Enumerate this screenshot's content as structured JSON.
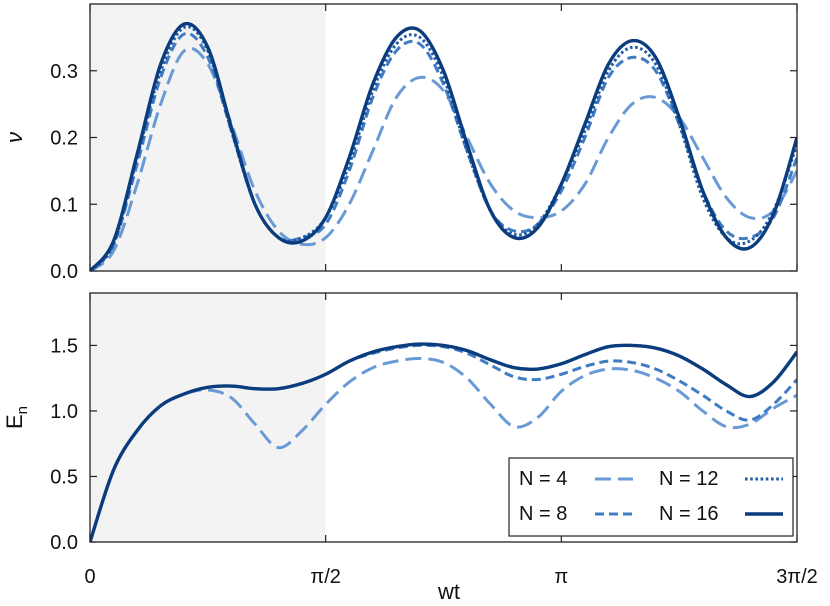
{
  "chart_data": [
    {
      "type": "line",
      "panel": "top",
      "ylabel": "ν",
      "xlim_in_pi_units": [
        0,
        1.5
      ],
      "ylim": [
        0,
        0.4
      ],
      "y_ticks": [
        "0.0",
        "0.1",
        "0.2",
        "0.3"
      ],
      "y_tick_values": [
        0,
        0.1,
        0.2,
        0.3
      ],
      "shaded_x_range_in_pi_units": [
        0,
        0.5
      ],
      "grid": false,
      "series": [
        {
          "name": "N = 4",
          "style": "long-dash",
          "color": "#6a9ad6",
          "x": [
            0,
            0.05,
            0.1,
            0.15,
            0.2,
            0.25,
            0.3,
            0.35,
            0.4,
            0.45,
            0.5,
            0.55,
            0.6,
            0.65,
            0.7,
            0.75,
            0.8,
            0.85,
            0.9,
            0.95,
            1.0,
            1.05,
            1.1,
            1.15,
            1.2,
            1.25,
            1.3,
            1.35,
            1.4,
            1.45,
            1.5
          ],
          "y": [
            0,
            0.03,
            0.13,
            0.25,
            0.33,
            0.31,
            0.22,
            0.12,
            0.06,
            0.04,
            0.05,
            0.1,
            0.18,
            0.26,
            0.29,
            0.27,
            0.2,
            0.13,
            0.09,
            0.08,
            0.09,
            0.13,
            0.2,
            0.25,
            0.26,
            0.23,
            0.17,
            0.11,
            0.08,
            0.09,
            0.15
          ]
        },
        {
          "name": "N = 8",
          "style": "dash",
          "color": "#3f7cc4",
          "x": [
            0,
            0.05,
            0.1,
            0.15,
            0.2,
            0.25,
            0.3,
            0.35,
            0.4,
            0.45,
            0.5,
            0.55,
            0.6,
            0.65,
            0.7,
            0.75,
            0.8,
            0.85,
            0.9,
            0.95,
            1.0,
            1.05,
            1.1,
            1.15,
            1.2,
            1.25,
            1.3,
            1.35,
            1.4,
            1.45,
            1.5
          ],
          "y": [
            0,
            0.04,
            0.16,
            0.29,
            0.355,
            0.32,
            0.21,
            0.1,
            0.05,
            0.05,
            0.07,
            0.15,
            0.26,
            0.33,
            0.34,
            0.28,
            0.18,
            0.09,
            0.06,
            0.07,
            0.12,
            0.2,
            0.29,
            0.32,
            0.3,
            0.22,
            0.12,
            0.06,
            0.05,
            0.08,
            0.17
          ]
        },
        {
          "name": "N = 12",
          "style": "dot",
          "color": "#1f5ba5",
          "x": [
            0,
            0.05,
            0.1,
            0.15,
            0.2,
            0.25,
            0.3,
            0.35,
            0.4,
            0.45,
            0.5,
            0.55,
            0.6,
            0.65,
            0.7,
            0.75,
            0.8,
            0.85,
            0.9,
            0.95,
            1.0,
            1.05,
            1.1,
            1.15,
            1.2,
            1.25,
            1.3,
            1.35,
            1.4,
            1.45,
            1.5
          ],
          "y": [
            0,
            0.04,
            0.17,
            0.3,
            0.365,
            0.33,
            0.21,
            0.1,
            0.05,
            0.05,
            0.08,
            0.16,
            0.27,
            0.34,
            0.35,
            0.29,
            0.18,
            0.09,
            0.055,
            0.07,
            0.13,
            0.21,
            0.3,
            0.335,
            0.31,
            0.22,
            0.11,
            0.05,
            0.045,
            0.09,
            0.19
          ]
        },
        {
          "name": "N = 16",
          "style": "solid",
          "color": "#0b3d7e",
          "x": [
            0,
            0.05,
            0.1,
            0.15,
            0.2,
            0.25,
            0.3,
            0.35,
            0.4,
            0.45,
            0.5,
            0.55,
            0.6,
            0.65,
            0.7,
            0.75,
            0.8,
            0.85,
            0.9,
            0.95,
            1.0,
            1.05,
            1.1,
            1.15,
            1.2,
            1.25,
            1.3,
            1.35,
            1.4,
            1.45,
            1.5
          ],
          "y": [
            0,
            0.045,
            0.175,
            0.31,
            0.37,
            0.335,
            0.215,
            0.1,
            0.05,
            0.045,
            0.08,
            0.17,
            0.28,
            0.35,
            0.36,
            0.3,
            0.19,
            0.09,
            0.05,
            0.065,
            0.13,
            0.22,
            0.31,
            0.345,
            0.32,
            0.23,
            0.12,
            0.05,
            0.035,
            0.085,
            0.2
          ]
        }
      ]
    },
    {
      "type": "line",
      "panel": "bottom",
      "xlabel": "wt",
      "ylabel_main": "E",
      "ylabel_sub": "n",
      "xlim_in_pi_units": [
        0,
        1.5
      ],
      "ylim": [
        0,
        1.9
      ],
      "x_ticks": [
        "0",
        "π/2",
        "π",
        "3π/2"
      ],
      "x_tick_values_in_pi_units": [
        0,
        0.5,
        1.0,
        1.5
      ],
      "y_ticks": [
        "0.0",
        "0.5",
        "1.0",
        "1.5"
      ],
      "y_tick_values": [
        0,
        0.5,
        1.0,
        1.5
      ],
      "shaded_x_range_in_pi_units": [
        0,
        0.5
      ],
      "legend_position": "bottom-right",
      "grid": false,
      "series": [
        {
          "name": "N = 4",
          "style": "long-dash",
          "color": "#6a9ad6",
          "x": [
            0,
            0.05,
            0.1,
            0.15,
            0.2,
            0.25,
            0.3,
            0.35,
            0.4,
            0.45,
            0.5,
            0.55,
            0.6,
            0.65,
            0.7,
            0.75,
            0.8,
            0.85,
            0.9,
            0.95,
            1.0,
            1.05,
            1.1,
            1.15,
            1.2,
            1.25,
            1.3,
            1.35,
            1.4,
            1.45,
            1.5
          ],
          "y": [
            0,
            0.55,
            0.85,
            1.04,
            1.13,
            1.16,
            1.1,
            0.9,
            0.72,
            0.85,
            1.05,
            1.22,
            1.33,
            1.38,
            1.4,
            1.37,
            1.25,
            1.05,
            0.88,
            0.95,
            1.15,
            1.27,
            1.32,
            1.31,
            1.25,
            1.15,
            1.0,
            0.88,
            0.9,
            1.02,
            1.12
          ]
        },
        {
          "name": "N = 8",
          "style": "dash",
          "color": "#3f7cc4",
          "x": [
            0,
            0.05,
            0.1,
            0.15,
            0.2,
            0.25,
            0.3,
            0.35,
            0.4,
            0.45,
            0.5,
            0.55,
            0.6,
            0.65,
            0.7,
            0.75,
            0.8,
            0.85,
            0.9,
            0.95,
            1.0,
            1.05,
            1.1,
            1.15,
            1.2,
            1.25,
            1.3,
            1.35,
            1.4,
            1.45,
            1.5
          ],
          "y": [
            0,
            0.55,
            0.85,
            1.04,
            1.13,
            1.18,
            1.19,
            1.17,
            1.17,
            1.21,
            1.28,
            1.38,
            1.44,
            1.48,
            1.5,
            1.49,
            1.44,
            1.35,
            1.26,
            1.24,
            1.28,
            1.34,
            1.38,
            1.37,
            1.32,
            1.23,
            1.12,
            1.0,
            0.93,
            1.05,
            1.24
          ]
        },
        {
          "name": "N = 12",
          "style": "dot",
          "color": "#1f5ba5",
          "x": [
            0,
            0.05,
            0.1,
            0.15,
            0.2,
            0.25,
            0.3,
            0.35,
            0.4,
            0.45,
            0.5,
            0.55,
            0.6,
            0.65,
            0.7,
            0.75,
            0.8,
            0.85,
            0.9,
            0.95,
            1.0,
            1.05,
            1.1,
            1.15,
            1.2,
            1.25,
            1.3,
            1.35,
            1.4,
            1.45,
            1.5
          ],
          "y": [
            0,
            0.55,
            0.85,
            1.04,
            1.13,
            1.18,
            1.19,
            1.17,
            1.17,
            1.21,
            1.28,
            1.38,
            1.45,
            1.49,
            1.51,
            1.5,
            1.46,
            1.39,
            1.33,
            1.32,
            1.36,
            1.43,
            1.49,
            1.5,
            1.48,
            1.42,
            1.32,
            1.2,
            1.11,
            1.22,
            1.45
          ]
        },
        {
          "name": "N = 16",
          "style": "solid",
          "color": "#0b3d7e",
          "x": [
            0,
            0.05,
            0.1,
            0.15,
            0.2,
            0.25,
            0.3,
            0.35,
            0.4,
            0.45,
            0.5,
            0.55,
            0.6,
            0.65,
            0.7,
            0.75,
            0.8,
            0.85,
            0.9,
            0.95,
            1.0,
            1.05,
            1.1,
            1.15,
            1.2,
            1.25,
            1.3,
            1.35,
            1.4,
            1.45,
            1.5
          ],
          "y": [
            0,
            0.55,
            0.85,
            1.04,
            1.13,
            1.18,
            1.19,
            1.17,
            1.17,
            1.21,
            1.28,
            1.38,
            1.45,
            1.49,
            1.51,
            1.5,
            1.46,
            1.39,
            1.33,
            1.32,
            1.36,
            1.43,
            1.49,
            1.5,
            1.48,
            1.42,
            1.32,
            1.2,
            1.11,
            1.22,
            1.45
          ]
        }
      ]
    }
  ]
}
